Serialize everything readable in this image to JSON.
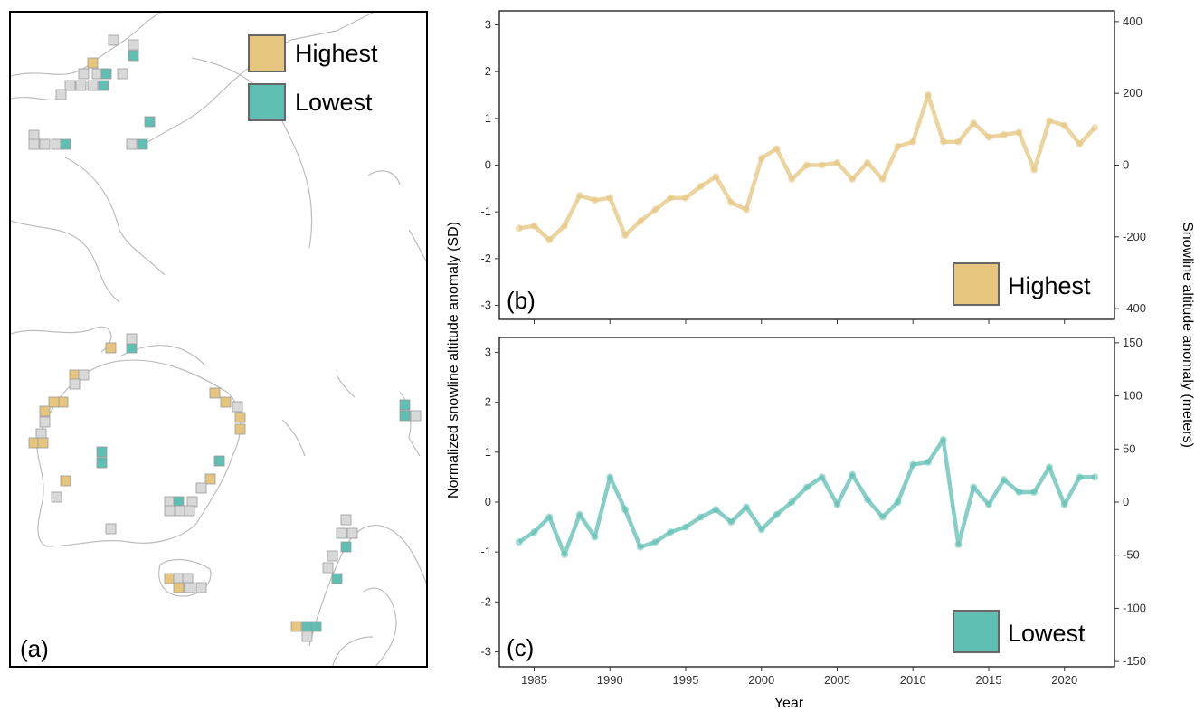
{
  "map": {
    "panel_label": "(a)",
    "legend": [
      {
        "label": "Highest",
        "color": "#E6C57F"
      },
      {
        "label": "Lowest",
        "color": "#5FBFB3"
      }
    ],
    "cell_colors": {
      "highest": "#E6C57F",
      "lowest": "#5FBFB3",
      "neutral": "#D9D9D9"
    }
  },
  "chart_data": [
    {
      "type": "line",
      "panel_label": "(b)",
      "legend_label": "Highest",
      "color": "#E6C57F",
      "xlabel": "",
      "ylabel": "",
      "x": [
        1984,
        1985,
        1986,
        1987,
        1988,
        1989,
        1990,
        1991,
        1992,
        1993,
        1994,
        1995,
        1996,
        1997,
        1998,
        1999,
        2000,
        2001,
        2002,
        2003,
        2004,
        2005,
        2006,
        2007,
        2008,
        2009,
        2010,
        2011,
        2012,
        2013,
        2014,
        2015,
        2016,
        2017,
        2018,
        2019,
        2020,
        2021,
        2022
      ],
      "y": [
        -1.35,
        -1.3,
        -1.6,
        -1.3,
        -0.65,
        -0.75,
        -0.7,
        -1.5,
        -1.2,
        -0.95,
        -0.7,
        -0.7,
        -0.45,
        -0.25,
        -0.8,
        -0.95,
        0.15,
        0.35,
        -0.3,
        0.0,
        0.0,
        0.05,
        -0.3,
        0.05,
        -0.3,
        0.4,
        0.5,
        1.5,
        0.5,
        0.5,
        0.9,
        0.6,
        0.65,
        0.7,
        -0.1,
        0.95,
        0.85,
        0.45,
        0.8
      ],
      "ylim": [
        -3.3,
        3.3
      ],
      "yticks": [
        -3,
        -2,
        -1,
        0,
        1,
        2,
        3
      ],
      "secondary_yticks": [
        -400,
        -200,
        0,
        200,
        400
      ],
      "secondary_ylim": [
        -430,
        430
      ]
    },
    {
      "type": "line",
      "panel_label": "(c)",
      "legend_label": "Lowest",
      "color": "#5FBFB3",
      "xlabel": "Year",
      "ylabel": "",
      "x": [
        1984,
        1985,
        1986,
        1987,
        1988,
        1989,
        1990,
        1991,
        1992,
        1993,
        1994,
        1995,
        1996,
        1997,
        1998,
        1999,
        2000,
        2001,
        2002,
        2003,
        2004,
        2005,
        2006,
        2007,
        2008,
        2009,
        2010,
        2011,
        2012,
        2013,
        2014,
        2015,
        2016,
        2017,
        2018,
        2019,
        2020,
        2021,
        2022
      ],
      "y": [
        -0.8,
        -0.6,
        -0.3,
        -1.05,
        -0.25,
        -0.7,
        0.5,
        -0.15,
        -0.9,
        -0.8,
        -0.6,
        -0.5,
        -0.3,
        -0.15,
        -0.4,
        -0.1,
        -0.55,
        -0.25,
        0.0,
        0.3,
        0.5,
        -0.05,
        0.55,
        0.05,
        -0.3,
        0.0,
        0.75,
        0.8,
        1.25,
        -0.85,
        0.3,
        -0.05,
        0.45,
        0.2,
        0.2,
        0.7,
        -0.05,
        0.5,
        0.5
      ],
      "ylim": [
        -3.3,
        3.3
      ],
      "yticks": [
        -3,
        -2,
        -1,
        0,
        1,
        2,
        3
      ],
      "secondary_yticks": [
        -150,
        -100,
        -50,
        0,
        50,
        100,
        150
      ],
      "secondary_ylim": [
        -155,
        155
      ]
    }
  ],
  "axes": {
    "xticks": [
      1985,
      1990,
      1995,
      2000,
      2005,
      2010,
      2015,
      2020
    ],
    "left_title": "Normalized snowline altitude anomaly (SD)",
    "right_title": "Snowline altitude anomaly (meters)",
    "bottom_title": "Year"
  }
}
